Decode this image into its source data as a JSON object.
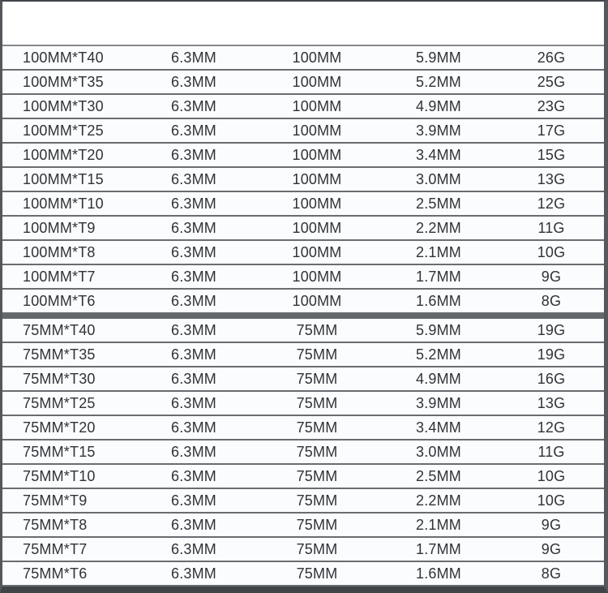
{
  "colors": {
    "frame_top": "#42464b",
    "frame_left": "#54575c",
    "frame_right": "#55585c",
    "frame_bottom": "#404348",
    "header_rule": "#85888c",
    "row_separator": "#686d71",
    "section_divider": "#64686c",
    "row_background": "#fbfcfd",
    "text": "#2f3338"
  },
  "table": {
    "sections": [
      {
        "name": "100mm-series",
        "rows": [
          [
            "100MM*T40",
            "6.3MM",
            "100MM",
            "5.9MM",
            "26G"
          ],
          [
            "100MM*T35",
            "6.3MM",
            "100MM",
            "5.2MM",
            "25G"
          ],
          [
            "100MM*T30",
            "6.3MM",
            "100MM",
            "4.9MM",
            "23G"
          ],
          [
            "100MM*T25",
            "6.3MM",
            "100MM",
            "3.9MM",
            "17G"
          ],
          [
            "100MM*T20",
            "6.3MM",
            "100MM",
            "3.4MM",
            "15G"
          ],
          [
            "100MM*T15",
            "6.3MM",
            "100MM",
            "3.0MM",
            "13G"
          ],
          [
            "100MM*T10",
            "6.3MM",
            "100MM",
            "2.5MM",
            "12G"
          ],
          [
            "100MM*T9",
            "6.3MM",
            "100MM",
            "2.2MM",
            "11G"
          ],
          [
            "100MM*T8",
            "6.3MM",
            "100MM",
            "2.1MM",
            "10G"
          ],
          [
            "100MM*T7",
            "6.3MM",
            "100MM",
            "1.7MM",
            "9G"
          ],
          [
            "100MM*T6",
            "6.3MM",
            "100MM",
            "1.6MM",
            "8G"
          ]
        ]
      },
      {
        "name": "75mm-series",
        "rows": [
          [
            "75MM*T40",
            "6.3MM",
            "75MM",
            "5.9MM",
            "19G"
          ],
          [
            "75MM*T35",
            "6.3MM",
            "75MM",
            "5.2MM",
            "19G"
          ],
          [
            "75MM*T30",
            "6.3MM",
            "75MM",
            "4.9MM",
            "16G"
          ],
          [
            "75MM*T25",
            "6.3MM",
            "75MM",
            "3.9MM",
            "13G"
          ],
          [
            "75MM*T20",
            "6.3MM",
            "75MM",
            "3.4MM",
            "12G"
          ],
          [
            "75MM*T15",
            "6.3MM",
            "75MM",
            "3.0MM",
            "11G"
          ],
          [
            "75MM*T10",
            "6.3MM",
            "75MM",
            "2.5MM",
            "10G"
          ],
          [
            "75MM*T9",
            "6.3MM",
            "75MM",
            "2.2MM",
            "10G"
          ],
          [
            "75MM*T8",
            "6.3MM",
            "75MM",
            "2.1MM",
            "9G"
          ],
          [
            "75MM*T7",
            "6.3MM",
            "75MM",
            "1.7MM",
            "9G"
          ],
          [
            "75MM*T6",
            "6.3MM",
            "75MM",
            "1.6MM",
            "8G"
          ]
        ]
      }
    ]
  }
}
